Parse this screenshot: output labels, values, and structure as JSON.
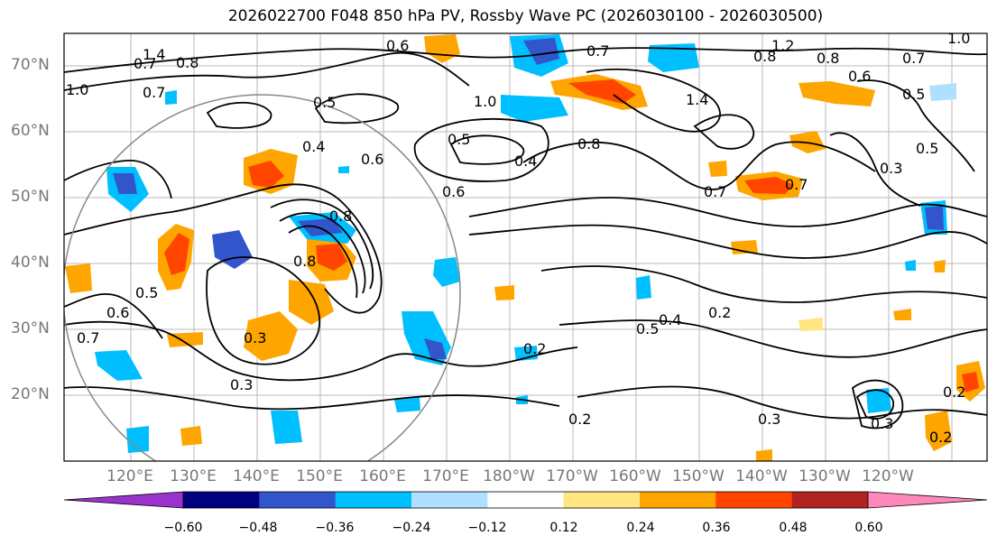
{
  "title": "2026022700 F048 850 hPa PV, Rossby Wave PC (2026030100 - 2026030500)",
  "lat_labels": [
    "70°N",
    "60°N",
    "50°N",
    "40°N",
    "30°N",
    "20°N"
  ],
  "lon_labels": [
    "120°E",
    "130°E",
    "140°E",
    "150°E",
    "160°E",
    "170°E",
    "180°W",
    "170°W",
    "160°W",
    "150°W",
    "140°W",
    "130°W",
    "120°W"
  ],
  "colorbar": {
    "ticks": [
      "−0.60",
      "−0.48",
      "−0.36",
      "−0.24",
      "−0.12",
      "0.12",
      "0.24",
      "0.36",
      "0.48",
      "0.60"
    ],
    "colors": [
      "#9933cc",
      "#000080",
      "#3355cc",
      "#00bfff",
      "#b0e0ff",
      "#ffffff",
      "#ffe680",
      "#ffa500",
      "#ff4500",
      "#b22222",
      "#ff88bb"
    ]
  },
  "contour_labels": [
    "0.6",
    "0.7",
    "0.8",
    "1.2",
    "1.4",
    "0.7",
    "0.5",
    "0.4",
    "0.6",
    "0.5",
    "0.4",
    "0.6",
    "0.7",
    "0.8",
    "1.4",
    "1.0",
    "0.8",
    "0.7",
    "0.3",
    "0.5",
    "0.8",
    "0.6",
    "0.5",
    "0.7",
    "0.3",
    "0.3",
    "0.2",
    "0.5",
    "0.4",
    "0.2",
    "0.2",
    "0.3",
    "0.3",
    "0.2",
    "0.2",
    "0.8",
    "0.8",
    "1.0",
    "0.7",
    "0.5",
    "0.6",
    "0.7",
    "1.0"
  ]
}
